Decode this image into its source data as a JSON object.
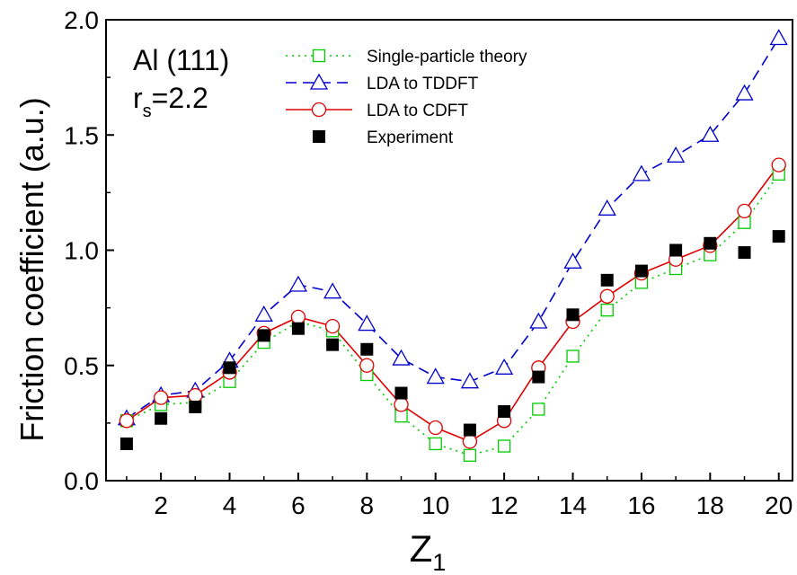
{
  "chart_data": {
    "type": "line",
    "title": "",
    "xlabel": "Z",
    "xlabel_sub": "1",
    "ylabel": "Friction coefficient (a.u.)",
    "xlim": [
      0.4,
      20.4
    ],
    "ylim": [
      0.0,
      2.0
    ],
    "xticks": [
      2,
      4,
      6,
      8,
      10,
      12,
      14,
      16,
      18,
      20
    ],
    "yticks": [
      0.0,
      0.5,
      1.0,
      1.5,
      2.0
    ],
    "xtick_labels": [
      "2",
      "4",
      "6",
      "8",
      "10",
      "12",
      "14",
      "16",
      "18",
      "20"
    ],
    "ytick_labels": [
      "0.0",
      "0.5",
      "1.0",
      "1.5",
      "2.0"
    ],
    "grid": false,
    "legend_position": "top-center",
    "annotations": {
      "material": "Al (111)",
      "rs_main": "r",
      "rs_sub": "s",
      "rs_value": "=2.2"
    },
    "x": [
      1,
      2,
      3,
      4,
      5,
      6,
      7,
      8,
      9,
      10,
      11,
      12,
      13,
      14,
      15,
      16,
      17,
      18,
      19,
      20
    ],
    "series": [
      {
        "name": "Single-particle theory",
        "color": "#00cc00",
        "line": "dotted",
        "marker": "open-square",
        "values": [
          0.26,
          0.33,
          0.34,
          0.43,
          0.6,
          0.69,
          0.65,
          0.46,
          0.28,
          0.16,
          0.11,
          0.15,
          0.31,
          0.54,
          0.74,
          0.86,
          0.92,
          0.98,
          1.12,
          1.33
        ]
      },
      {
        "name": "LDA to TDDFT",
        "color": "#0000cc",
        "line": "dashed",
        "marker": "open-triangle",
        "values": [
          0.27,
          0.37,
          0.39,
          0.52,
          0.72,
          0.85,
          0.82,
          0.68,
          0.53,
          0.45,
          0.43,
          0.49,
          0.69,
          0.95,
          1.18,
          1.33,
          1.41,
          1.5,
          1.68,
          1.92
        ]
      },
      {
        "name": "LDA to CDFT",
        "color": "#dd0000",
        "line": "solid",
        "marker": "open-circle",
        "values": [
          0.26,
          0.36,
          0.37,
          0.47,
          0.64,
          0.71,
          0.67,
          0.5,
          0.33,
          0.23,
          0.17,
          0.26,
          0.49,
          0.69,
          0.8,
          0.9,
          0.96,
          1.02,
          1.17,
          1.37
        ]
      },
      {
        "name": "Experiment",
        "color": "#000000",
        "line": "none",
        "marker": "filled-square",
        "values": [
          0.16,
          0.27,
          0.32,
          0.49,
          0.63,
          0.66,
          0.59,
          0.57,
          0.38,
          null,
          0.22,
          0.3,
          0.45,
          0.72,
          0.87,
          0.91,
          1.0,
          1.03,
          0.99,
          1.06
        ]
      }
    ]
  }
}
